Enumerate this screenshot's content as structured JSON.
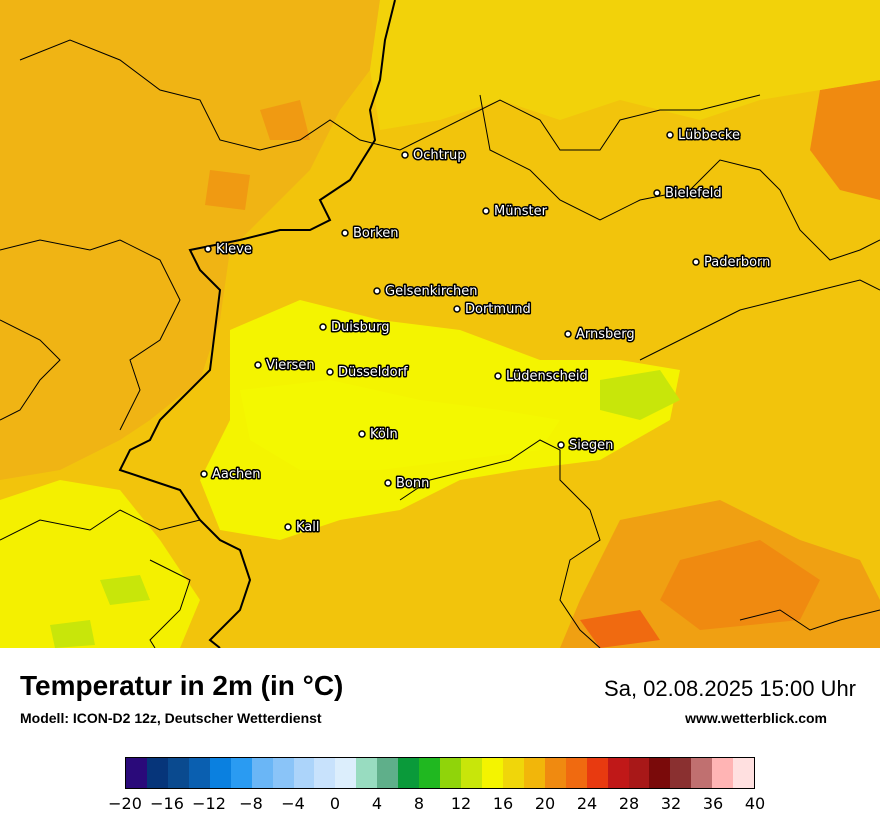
{
  "title": "Temperatur in 2m (in °C)",
  "subtitle": "Modell: ICON-D2 12z, Deutscher Wetterdienst",
  "datetime": "Sa, 02.08.2025 15:00 Uhr",
  "website": "www.wetterblick.com",
  "legend": {
    "colors": [
      "#2a0a7a",
      "#06357a",
      "#0a4a8f",
      "#0a5fb0",
      "#0a80e0",
      "#2a9bf2",
      "#6ab6f6",
      "#8ac4f8",
      "#acd4fa",
      "#c8e2fc",
      "#dceefc",
      "#98dcc0",
      "#5faf8a",
      "#0a9a3a",
      "#20b820",
      "#90d40a",
      "#c8e60a",
      "#f4f400",
      "#f0d60a",
      "#f2b60a",
      "#f08a10",
      "#f06a10",
      "#e83a10",
      "#c01818",
      "#a81818",
      "#7a0a0a",
      "#8a3030",
      "#c07070",
      "#ffb4b4",
      "#ffe0e0"
    ],
    "ticks": [
      "−20",
      "−16",
      "−12",
      "−8",
      "−4",
      "0",
      "4",
      "8",
      "12",
      "16",
      "20",
      "24",
      "28",
      "32",
      "36",
      "40"
    ]
  },
  "cities": [
    {
      "name": "Lübbecke"
    },
    {
      "name": "Ochtrup"
    },
    {
      "name": "Bielefeld"
    },
    {
      "name": "Münster"
    },
    {
      "name": "Borken"
    },
    {
      "name": "Kleve"
    },
    {
      "name": "Paderborn"
    },
    {
      "name": "Gelsenkirchen"
    },
    {
      "name": "Dortmund"
    },
    {
      "name": "Duisburg"
    },
    {
      "name": "Arnsberg"
    },
    {
      "name": "Viersen"
    },
    {
      "name": "Düsseldorf"
    },
    {
      "name": "Lüdenscheid"
    },
    {
      "name": "Köln"
    },
    {
      "name": "Siegen"
    },
    {
      "name": "Aachen"
    },
    {
      "name": "Bonn"
    },
    {
      "name": "Kall"
    }
  ]
}
